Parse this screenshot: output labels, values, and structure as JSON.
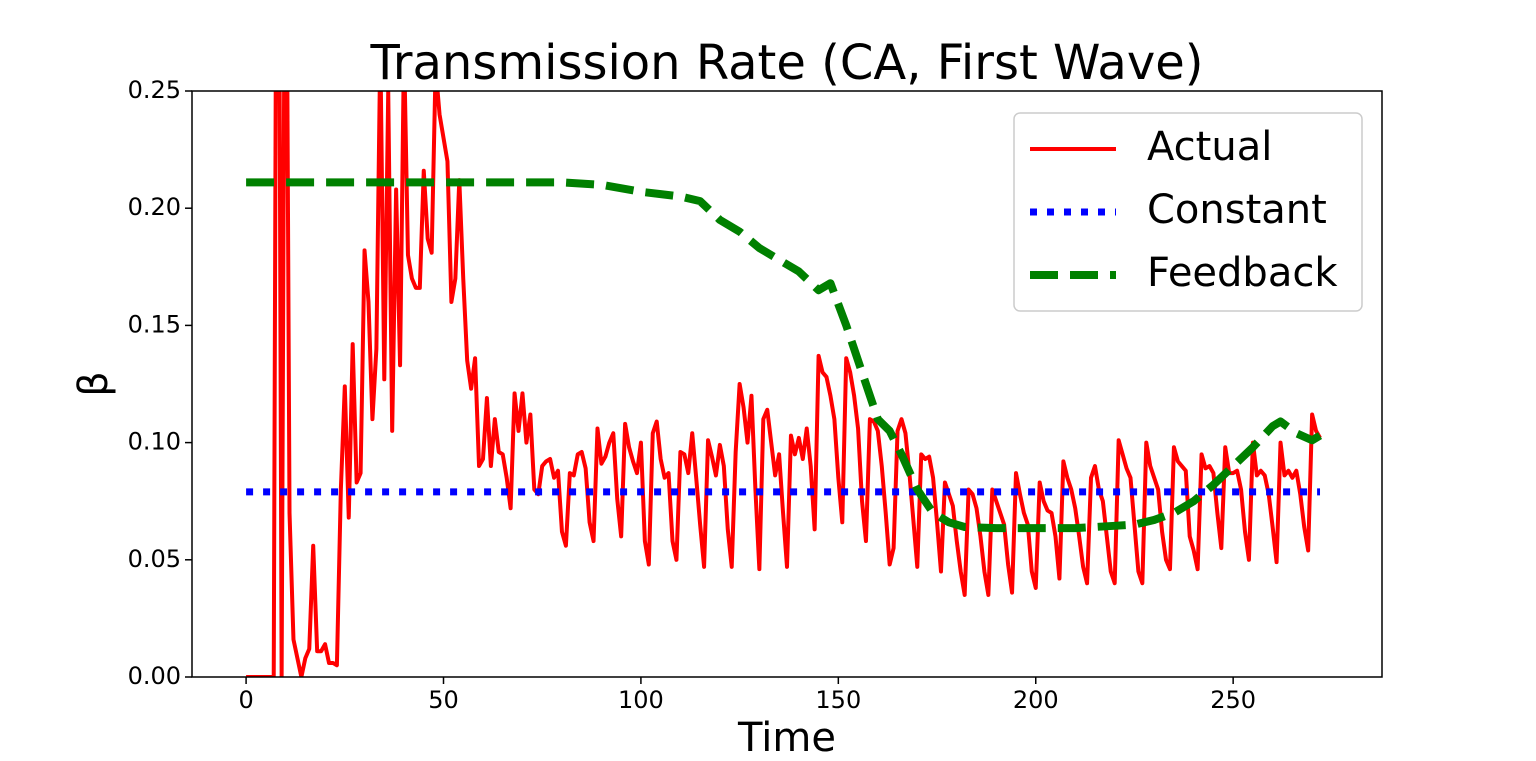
{
  "chart_data": {
    "type": "line",
    "title": "Transmission Rate (CA, First Wave)",
    "xlabel": "Time",
    "ylabel": "β",
    "xlim": [
      -13.7,
      287.7
    ],
    "xticks": [
      0,
      50,
      100,
      150,
      200,
      250
    ],
    "ylim": [
      0,
      0.25
    ],
    "yticks": [
      {
        "value": 0,
        "label": "0.00"
      },
      {
        "value": 0.05,
        "label": "0.05"
      },
      {
        "value": 0.1,
        "label": "0.10"
      },
      {
        "value": 0.15,
        "label": "0.15"
      },
      {
        "value": 0.2,
        "label": "0.20"
      },
      {
        "value": 0.25,
        "label": "0.25"
      }
    ],
    "grid": false,
    "legend": "upper right",
    "series": [
      {
        "name": "Actual",
        "color": "#ff0000",
        "style": "solid",
        "x": [
          0,
          1,
          2,
          3,
          4,
          5,
          6,
          7,
          8,
          9,
          10,
          11,
          12,
          13,
          14,
          15,
          16,
          17,
          18,
          19,
          20,
          21,
          22,
          23,
          24,
          25,
          26,
          27,
          28,
          29,
          30,
          31,
          32,
          33,
          34,
          35,
          36,
          37,
          38,
          39,
          40,
          41,
          42,
          43,
          44,
          45,
          46,
          47,
          48,
          49,
          50,
          51,
          52,
          53,
          54,
          55,
          56,
          57,
          58,
          59,
          60,
          61,
          62,
          63,
          64,
          65,
          66,
          67,
          68,
          69,
          70,
          71,
          72,
          73,
          74,
          75,
          76,
          77,
          78,
          79,
          80,
          81,
          82,
          83,
          84,
          85,
          86,
          87,
          88,
          89,
          90,
          91,
          92,
          93,
          94,
          95,
          96,
          97,
          98,
          99,
          100,
          101,
          102,
          103,
          104,
          105,
          106,
          107,
          108,
          109,
          110,
          111,
          112,
          113,
          114,
          115,
          116,
          117,
          118,
          119,
          120,
          121,
          122,
          123,
          124,
          125,
          126,
          127,
          128,
          129,
          130,
          131,
          132,
          133,
          134,
          135,
          136,
          137,
          138,
          139,
          140,
          141,
          142,
          143,
          144,
          145,
          146,
          147,
          148,
          149,
          150,
          151,
          152,
          153,
          154,
          155,
          156,
          157,
          158,
          159,
          160,
          161,
          162,
          163,
          164,
          165,
          166,
          167,
          168,
          169,
          170,
          171,
          172,
          173,
          174,
          175,
          176,
          177,
          178,
          179,
          180,
          181,
          182,
          183,
          184,
          185,
          186,
          187,
          188,
          189,
          190,
          191,
          192,
          193,
          194,
          195,
          196,
          197,
          198,
          199,
          200,
          201,
          202,
          203,
          204,
          205,
          206,
          207,
          208,
          209,
          210,
          211,
          212,
          213,
          214,
          215,
          216,
          217,
          218,
          219,
          220,
          221,
          222,
          223,
          224,
          225,
          226,
          227,
          228,
          229,
          230,
          231,
          232,
          233,
          234,
          235,
          236,
          237,
          238,
          239,
          240,
          241,
          242,
          243,
          244,
          245,
          246,
          247,
          248,
          249,
          250,
          251,
          252,
          253,
          254,
          255,
          256,
          257,
          258,
          259,
          260,
          261,
          262,
          263,
          264,
          265,
          266,
          267,
          268,
          269,
          270,
          271,
          272
        ],
        "values": [
          0,
          0,
          0,
          0,
          0,
          0,
          0,
          0,
          0.5,
          0,
          0.4,
          0.07,
          0.016,
          0.008,
          0,
          0.008,
          0.012,
          0.056,
          0.011,
          0.011,
          0.014,
          0.006,
          0.006,
          0.005,
          0.08,
          0.124,
          0.068,
          0.142,
          0.083,
          0.087,
          0.182,
          0.16,
          0.11,
          0.14,
          0.27,
          0.127,
          0.25,
          0.105,
          0.208,
          0.133,
          0.27,
          0.18,
          0.17,
          0.166,
          0.166,
          0.216,
          0.187,
          0.181,
          0.26,
          0.24,
          0.23,
          0.22,
          0.16,
          0.17,
          0.212,
          0.17,
          0.135,
          0.123,
          0.136,
          0.09,
          0.093,
          0.119,
          0.09,
          0.11,
          0.096,
          0.095,
          0.085,
          0.072,
          0.121,
          0.105,
          0.121,
          0.1,
          0.112,
          0.08,
          0.078,
          0.09,
          0.092,
          0.093,
          0.085,
          0.088,
          0.062,
          0.056,
          0.087,
          0.086,
          0.095,
          0.096,
          0.089,
          0.066,
          0.058,
          0.106,
          0.091,
          0.094,
          0.1,
          0.104,
          0.076,
          0.06,
          0.108,
          0.098,
          0.092,
          0.087,
          0.1,
          0.058,
          0.048,
          0.104,
          0.109,
          0.093,
          0.085,
          0.087,
          0.058,
          0.05,
          0.096,
          0.095,
          0.087,
          0.104,
          0.085,
          0.065,
          0.047,
          0.101,
          0.094,
          0.086,
          0.099,
          0.09,
          0.063,
          0.047,
          0.096,
          0.125,
          0.115,
          0.1,
          0.12,
          0.08,
          0.046,
          0.11,
          0.114,
          0.1,
          0.086,
          0.095,
          0.07,
          0.047,
          0.103,
          0.095,
          0.102,
          0.093,
          0.106,
          0.09,
          0.063,
          0.137,
          0.13,
          0.128,
          0.12,
          0.11,
          0.085,
          0.066,
          0.136,
          0.13,
          0.12,
          0.106,
          0.075,
          0.058,
          0.11,
          0.109,
          0.105,
          0.09,
          0.07,
          0.048,
          0.055,
          0.105,
          0.11,
          0.104,
          0.087,
          0.067,
          0.047,
          0.095,
          0.093,
          0.094,
          0.085,
          0.066,
          0.045,
          0.083,
          0.078,
          0.073,
          0.058,
          0.045,
          0.035,
          0.08,
          0.078,
          0.072,
          0.06,
          0.045,
          0.035,
          0.08,
          0.075,
          0.07,
          0.065,
          0.048,
          0.036,
          0.087,
          0.078,
          0.07,
          0.065,
          0.045,
          0.038,
          0.083,
          0.075,
          0.071,
          0.07,
          0.06,
          0.042,
          0.092,
          0.085,
          0.08,
          0.072,
          0.06,
          0.047,
          0.04,
          0.085,
          0.09,
          0.08,
          0.075,
          0.06,
          0.045,
          0.04,
          0.101,
          0.095,
          0.089,
          0.085,
          0.065,
          0.045,
          0.04,
          0.1,
          0.09,
          0.085,
          0.08,
          0.062,
          0.05,
          0.046,
          0.098,
          0.092,
          0.09,
          0.088,
          0.06,
          0.054,
          0.046,
          0.095,
          0.089,
          0.09,
          0.087,
          0.07,
          0.055,
          0.098,
          0.087,
          0.087,
          0.088,
          0.08,
          0.062,
          0.05,
          0.1,
          0.086,
          0.088,
          0.086,
          0.078,
          0.064,
          0.049,
          0.1,
          0.086,
          0.088,
          0.085,
          0.088,
          0.078,
          0.064,
          0.054,
          0.112,
          0.105,
          0.102
        ]
      },
      {
        "name": "Constant",
        "color": "#0000ff",
        "style": "dotted",
        "x": [
          0,
          272
        ],
        "values": [
          0.079,
          0.079
        ]
      },
      {
        "name": "Feedback",
        "color": "#008000",
        "style": "dashed",
        "x": [
          0,
          10,
          20,
          30,
          40,
          50,
          60,
          70,
          80,
          90,
          100,
          105,
          110,
          115,
          120,
          125,
          130,
          135,
          140,
          145,
          148,
          152,
          154,
          157,
          160,
          163,
          166,
          170,
          174,
          178,
          182,
          190,
          200,
          210,
          215,
          220,
          225,
          230,
          235,
          240,
          245,
          250,
          255,
          260,
          262,
          266,
          270,
          272
        ],
        "values": [
          0.211,
          0.211,
          0.211,
          0.211,
          0.211,
          0.211,
          0.211,
          0.211,
          0.211,
          0.21,
          0.207,
          0.206,
          0.205,
          0.203,
          0.195,
          0.19,
          0.183,
          0.178,
          0.173,
          0.165,
          0.168,
          0.15,
          0.14,
          0.125,
          0.11,
          0.105,
          0.095,
          0.08,
          0.07,
          0.066,
          0.064,
          0.0635,
          0.0635,
          0.0635,
          0.064,
          0.0645,
          0.065,
          0.067,
          0.07,
          0.075,
          0.082,
          0.09,
          0.098,
          0.107,
          0.109,
          0.104,
          0.101,
          0.103
        ]
      }
    ]
  }
}
